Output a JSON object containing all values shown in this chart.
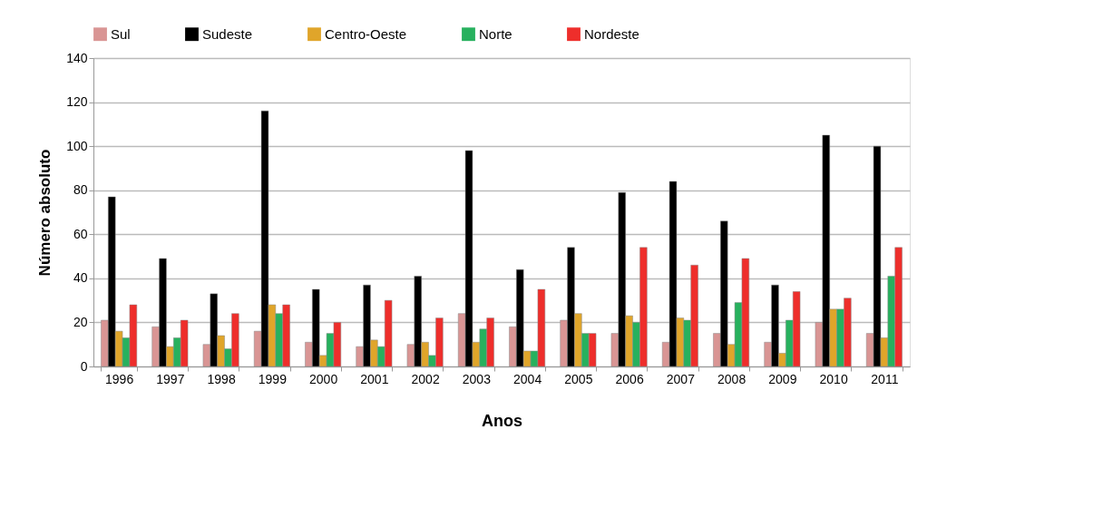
{
  "chart_data": {
    "type": "bar",
    "xlabel": "Anos",
    "ylabel": "Número absoluto",
    "categories": [
      "1996",
      "1997",
      "1998",
      "1999",
      "2000",
      "2001",
      "2002",
      "2003",
      "2004",
      "2005",
      "2006",
      "2007",
      "2008",
      "2009",
      "2010",
      "2011"
    ],
    "series": [
      {
        "name": "Sul",
        "color": "#d99594",
        "values": [
          21,
          18,
          10,
          16,
          11,
          9,
          10,
          24,
          18,
          21,
          15,
          11,
          15,
          11,
          20,
          15
        ]
      },
      {
        "name": "Sudeste",
        "color": "#000000",
        "values": [
          77,
          49,
          33,
          116,
          35,
          37,
          41,
          98,
          44,
          54,
          79,
          84,
          66,
          37,
          105,
          100
        ]
      },
      {
        "name": "Centro-Oeste",
        "color": "#e0a52a",
        "values": [
          16,
          9,
          14,
          28,
          5,
          12,
          11,
          11,
          7,
          24,
          23,
          22,
          10,
          6,
          26,
          13
        ]
      },
      {
        "name": "Norte",
        "color": "#27b15e",
        "values": [
          13,
          13,
          8,
          24,
          15,
          9,
          5,
          17,
          7,
          15,
          20,
          21,
          29,
          21,
          26,
          41
        ]
      },
      {
        "name": "Nordeste",
        "color": "#ee2e2b",
        "values": [
          28,
          21,
          24,
          28,
          20,
          30,
          22,
          22,
          35,
          15,
          54,
          46,
          49,
          34,
          31,
          54
        ]
      }
    ],
    "ylim": [
      0,
      140
    ],
    "yticks": [
      0,
      20,
      40,
      60,
      80,
      100,
      120,
      140
    ],
    "grid": "y",
    "legend": "top"
  }
}
